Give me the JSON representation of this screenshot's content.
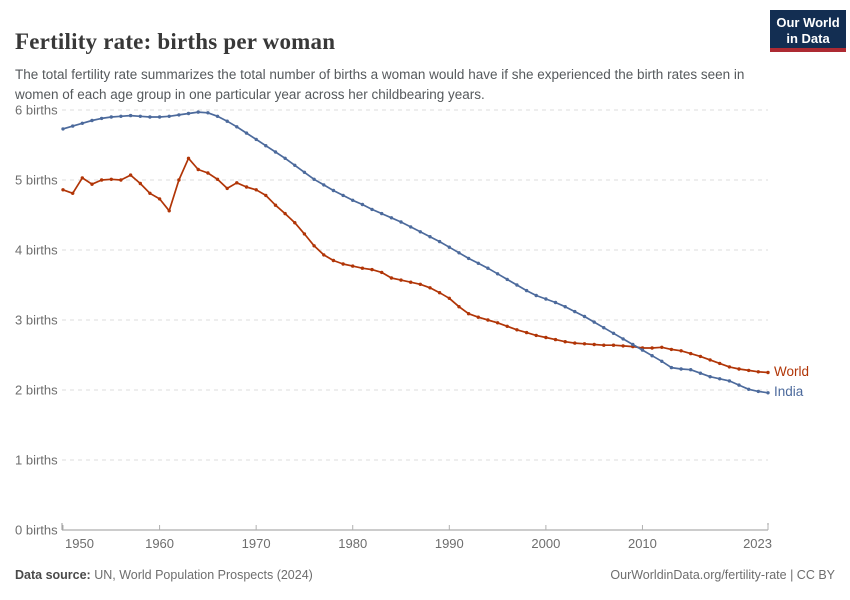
{
  "header": {
    "title": "Fertility rate: births per woman",
    "subtitle": "The total fertility rate summarizes the total number of births a woman would have if she experienced the birth rates seen in women of each age group in one particular year across her childbearing years.",
    "logo": {
      "line1": "Our World",
      "line2": "in Data",
      "bg_color": "#132E52",
      "stripe_color": "#AD2A32"
    }
  },
  "footer": {
    "source_label": "Data source:",
    "source_text": " UN, World Population Prospects (2024)",
    "right_text": "OurWorldinData.org/fertility-rate | CC BY"
  },
  "chart_data": {
    "type": "line",
    "title": "Fertility rate: births per woman",
    "xlabel": "",
    "ylabel": "births",
    "ylim": [
      0,
      6
    ],
    "xlim": [
      1950,
      2023
    ],
    "grid": "horizontal-dashed",
    "legend_position": "end-of-line-labels-right",
    "y_ticks": [
      {
        "value": 0,
        "label": "0 births"
      },
      {
        "value": 1,
        "label": "1 births"
      },
      {
        "value": 2,
        "label": "2 births"
      },
      {
        "value": 3,
        "label": "3 births"
      },
      {
        "value": 4,
        "label": "4 births"
      },
      {
        "value": 5,
        "label": "5 births"
      },
      {
        "value": 6,
        "label": "6 births"
      }
    ],
    "x_ticks": [
      {
        "value": 1950,
        "label": "1950"
      },
      {
        "value": 1960,
        "label": "1960"
      },
      {
        "value": 1970,
        "label": "1970"
      },
      {
        "value": 1980,
        "label": "1980"
      },
      {
        "value": 1990,
        "label": "1990"
      },
      {
        "value": 2000,
        "label": "2000"
      },
      {
        "value": 2010,
        "label": "2010"
      },
      {
        "value": 2023,
        "label": "2023"
      }
    ],
    "x": [
      1950,
      1951,
      1952,
      1953,
      1954,
      1955,
      1956,
      1957,
      1958,
      1959,
      1960,
      1961,
      1962,
      1963,
      1964,
      1965,
      1966,
      1967,
      1968,
      1969,
      1970,
      1971,
      1972,
      1973,
      1974,
      1975,
      1976,
      1977,
      1978,
      1979,
      1980,
      1981,
      1982,
      1983,
      1984,
      1985,
      1986,
      1987,
      1988,
      1989,
      1990,
      1991,
      1992,
      1993,
      1994,
      1995,
      1996,
      1997,
      1998,
      1999,
      2000,
      2001,
      2002,
      2003,
      2004,
      2005,
      2006,
      2007,
      2008,
      2009,
      2010,
      2011,
      2012,
      2013,
      2014,
      2015,
      2016,
      2017,
      2018,
      2019,
      2020,
      2021,
      2022,
      2023
    ],
    "series": [
      {
        "name": "World",
        "color": "#B13507",
        "values": [
          4.86,
          4.81,
          5.03,
          4.94,
          5.0,
          5.01,
          5.0,
          5.07,
          4.95,
          4.81,
          4.73,
          4.56,
          5.0,
          5.31,
          5.15,
          5.1,
          5.01,
          4.88,
          4.96,
          4.9,
          4.86,
          4.78,
          4.64,
          4.52,
          4.39,
          4.23,
          4.06,
          3.93,
          3.85,
          3.8,
          3.77,
          3.74,
          3.72,
          3.68,
          3.6,
          3.57,
          3.54,
          3.51,
          3.46,
          3.39,
          3.31,
          3.19,
          3.09,
          3.04,
          3.0,
          2.96,
          2.91,
          2.86,
          2.82,
          2.78,
          2.75,
          2.72,
          2.69,
          2.67,
          2.66,
          2.65,
          2.64,
          2.64,
          2.63,
          2.62,
          2.6,
          2.6,
          2.61,
          2.58,
          2.56,
          2.52,
          2.48,
          2.43,
          2.38,
          2.33,
          2.3,
          2.28,
          2.26,
          2.25
        ]
      },
      {
        "name": "India",
        "color": "#4C6A9C",
        "values": [
          5.73,
          5.77,
          5.81,
          5.85,
          5.88,
          5.9,
          5.91,
          5.92,
          5.91,
          5.9,
          5.9,
          5.91,
          5.93,
          5.95,
          5.97,
          5.96,
          5.91,
          5.84,
          5.76,
          5.67,
          5.58,
          5.49,
          5.4,
          5.31,
          5.21,
          5.11,
          5.01,
          4.93,
          4.85,
          4.78,
          4.71,
          4.65,
          4.58,
          4.52,
          4.46,
          4.4,
          4.33,
          4.26,
          4.19,
          4.12,
          4.04,
          3.96,
          3.88,
          3.81,
          3.74,
          3.66,
          3.58,
          3.5,
          3.42,
          3.35,
          3.3,
          3.25,
          3.19,
          3.12,
          3.05,
          2.97,
          2.89,
          2.81,
          2.73,
          2.65,
          2.57,
          2.49,
          2.41,
          2.32,
          2.3,
          2.29,
          2.24,
          2.19,
          2.16,
          2.13,
          2.07,
          2.01,
          1.98,
          1.96
        ]
      }
    ]
  }
}
